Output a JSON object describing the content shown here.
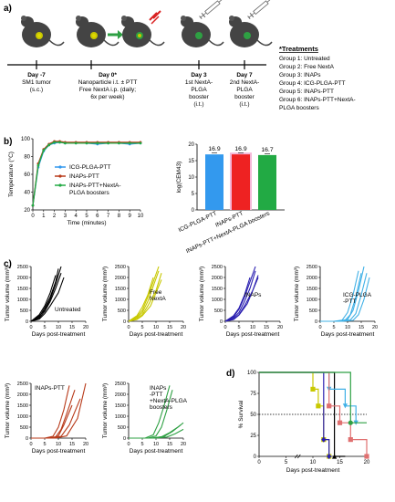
{
  "panels": {
    "a": {
      "label": "a)",
      "timeline": [
        {
          "day": "Day -7",
          "desc": [
            "SM1 tumor",
            "(s.c.)"
          ]
        },
        {
          "day": "Day 0*",
          "desc": [
            "Nanoparticle i.t. ± PTT",
            "Free NextA i.p. (daily;",
            "6x per week)"
          ]
        },
        {
          "day": "Day 3",
          "desc": [
            "1st NextA-",
            "PLGA",
            "booster",
            "(i.t.)"
          ]
        },
        {
          "day": "Day 7",
          "desc": [
            "2nd NextA-",
            "PLGA",
            "booster",
            "(i.t.)"
          ]
        }
      ],
      "treatments_title": "*Treatments",
      "treatments": [
        "Group 1: Untreated",
        "Group 2: Free NextA",
        "Group 3: INAPs",
        "Group 4: ICG-PLGA-PTT",
        "Group 5: INAPs-PTT",
        "Group 6: INAPs-PTT+NextA-",
        "PLGA boosters"
      ]
    },
    "b": {
      "label": "b)"
    },
    "c": {
      "label": "c)"
    },
    "d": {
      "label": "d)"
    }
  },
  "colors": {
    "untreated": "#000000",
    "free_nexta": "#c8c800",
    "inaps": "#2a1fb0",
    "icg": "#3fb0e6",
    "inaps_ptt": "#b83a1a",
    "combo": "#2ea043",
    "bar_blue": "#3399ee",
    "bar_red": "#ee2222",
    "bar_green": "#22aa44",
    "pink_shadow": "#f4b8d8"
  },
  "chart_data": [
    {
      "id": "b-temperature",
      "type": "line",
      "xlabel": "Time (minutes)",
      "ylabel": "Temperature (°C)",
      "xlim": [
        0,
        10
      ],
      "ylim": [
        20,
        100
      ],
      "xticks": [
        0,
        1,
        2,
        3,
        4,
        5,
        6,
        7,
        8,
        9,
        10
      ],
      "yticks": [
        20,
        40,
        60,
        80,
        100
      ],
      "series": [
        {
          "name": "ICG-PLGA-PTT",
          "color": "#3399ee",
          "x": [
            0,
            0.5,
            1,
            1.5,
            2,
            2.5,
            3,
            4,
            5,
            6,
            7,
            8,
            9,
            10
          ],
          "y": [
            25,
            68,
            86,
            93,
            95,
            96,
            95,
            95,
            95,
            94,
            95,
            95,
            94,
            95
          ]
        },
        {
          "name": "INAPs-PTT",
          "color": "#b83a1a",
          "x": [
            0,
            0.5,
            1,
            1.5,
            2,
            2.5,
            3,
            4,
            5,
            6,
            7,
            8,
            9,
            10
          ],
          "y": [
            25,
            72,
            88,
            94,
            97,
            97,
            96,
            96,
            96,
            96,
            96,
            96,
            96,
            96
          ]
        },
        {
          "name": "INAPs-PTT+NextA-PLGA boosters",
          "color": "#22aa44",
          "x": [
            0,
            0.5,
            1,
            1.5,
            2,
            2.5,
            3,
            4,
            5,
            6,
            7,
            8,
            9,
            10
          ],
          "y": [
            25,
            70,
            87,
            93,
            96,
            96,
            95,
            95,
            95,
            95,
            95,
            95,
            95,
            95
          ]
        }
      ]
    },
    {
      "id": "b-cem43",
      "type": "bar",
      "ylabel": "log(CEM43)",
      "ylim": [
        0,
        20
      ],
      "yticks": [
        0,
        5,
        10,
        15,
        20
      ],
      "categories": [
        "ICG-PLGA-PTT",
        "INAPs-PTT",
        "INAPs-PTT+NextA-PLGA boosters"
      ],
      "values": [
        16.9,
        16.9,
        16.7
      ],
      "value_labels": [
        "16.9",
        "16.9",
        "16.7"
      ]
    },
    {
      "id": "c-tumor-growth",
      "type": "line",
      "xlabel": "Days post-treatment",
      "ylabel": "Tumor volume (mm³)",
      "xlim": [
        0,
        20
      ],
      "ylim": [
        0,
        2500
      ],
      "xticks": [
        0,
        5,
        10,
        15,
        20
      ],
      "yticks": [
        0,
        500,
        1000,
        1500,
        2000,
        2500
      ],
      "groups": [
        {
          "name": "Untreated",
          "color": "#000000",
          "curves": [
            {
              "x": [
                0,
                3,
                5,
                7,
                9,
                10
              ],
              "y": [
                0,
                200,
                600,
                1100,
                1800,
                2400
              ]
            },
            {
              "x": [
                0,
                3,
                5,
                7,
                9,
                11
              ],
              "y": [
                0,
                150,
                450,
                900,
                1500,
                2200
              ]
            },
            {
              "x": [
                0,
                3,
                5,
                7,
                10,
                12
              ],
              "y": [
                0,
                100,
                350,
                700,
                1300,
                2000
              ]
            },
            {
              "x": [
                0,
                3,
                5,
                7,
                9,
                11
              ],
              "y": [
                0,
                250,
                500,
                1000,
                1700,
                2500
              ]
            },
            {
              "x": [
                0,
                3,
                5,
                7,
                9
              ],
              "y": [
                0,
                300,
                700,
                1300,
                2100
              ]
            }
          ]
        },
        {
          "name": "Free NextA",
          "color": "#c8c800",
          "curves": [
            {
              "x": [
                0,
                3,
                5,
                7,
                9,
                11
              ],
              "y": [
                0,
                150,
                400,
                900,
                1600,
                2300
              ]
            },
            {
              "x": [
                0,
                3,
                5,
                7,
                10,
                12
              ],
              "y": [
                0,
                100,
                300,
                700,
                1400,
                2200
              ]
            },
            {
              "x": [
                0,
                3,
                5,
                7,
                9,
                11
              ],
              "y": [
                0,
                200,
                500,
                1100,
                1800,
                2500
              ]
            },
            {
              "x": [
                0,
                3,
                5,
                7,
                9
              ],
              "y": [
                0,
                250,
                650,
                1200,
                2000
              ]
            },
            {
              "x": [
                0,
                3,
                5,
                8,
                10,
                12
              ],
              "y": [
                0,
                80,
                250,
                700,
                1300,
                1900
              ]
            }
          ]
        },
        {
          "name": "INAPs",
          "color": "#2a1fb0",
          "curves": [
            {
              "x": [
                0,
                3,
                5,
                7,
                9,
                11
              ],
              "y": [
                0,
                150,
                400,
                900,
                1500,
                2300
              ]
            },
            {
              "x": [
                0,
                3,
                5,
                7,
                10,
                12
              ],
              "y": [
                0,
                100,
                300,
                700,
                1400,
                2100
              ]
            },
            {
              "x": [
                0,
                3,
                5,
                7,
                9,
                11
              ],
              "y": [
                0,
                200,
                550,
                1100,
                1800,
                2500
              ]
            },
            {
              "x": [
                0,
                3,
                5,
                7,
                9
              ],
              "y": [
                0,
                250,
                600,
                1200,
                2000
              ]
            },
            {
              "x": [
                0,
                3,
                5,
                8,
                10,
                12
              ],
              "y": [
                0,
                80,
                280,
                800,
                1400,
                2000
              ]
            }
          ]
        },
        {
          "name": "ICG-PLGA-PTT",
          "color": "#3fb0e6",
          "curves": [
            {
              "x": [
                0,
                5,
                8,
                10,
                12,
                14
              ],
              "y": [
                0,
                0,
                50,
                400,
                1200,
                2300
              ]
            },
            {
              "x": [
                0,
                5,
                9,
                11,
                13,
                15
              ],
              "y": [
                0,
                0,
                30,
                300,
                1100,
                2200
              ]
            },
            {
              "x": [
                0,
                6,
                10,
                12,
                14,
                16
              ],
              "y": [
                0,
                0,
                80,
                500,
                1400,
                2500
              ]
            },
            {
              "x": [
                0,
                7,
                11,
                13,
                15,
                17
              ],
              "y": [
                0,
                0,
                60,
                350,
                1200,
                2200
              ]
            },
            {
              "x": [
                0,
                8,
                12,
                14,
                16,
                18
              ],
              "y": [
                0,
                0,
                40,
                300,
                1000,
                2000
              ]
            }
          ]
        },
        {
          "name": "INAPs-PTT",
          "color": "#b83a1a",
          "curves": [
            {
              "x": [
                0,
                5,
                8,
                10,
                12,
                14
              ],
              "y": [
                0,
                0,
                80,
                500,
                1300,
                2400
              ]
            },
            {
              "x": [
                0,
                6,
                9,
                11,
                13,
                16
              ],
              "y": [
                0,
                0,
                50,
                400,
                1100,
                2200
              ]
            },
            {
              "x": [
                0,
                7,
                10,
                12,
                15
              ],
              "y": [
                0,
                0,
                100,
                600,
                1500
              ]
            },
            {
              "x": [
                0,
                8,
                11,
                14,
                18
              ],
              "y": [
                0,
                0,
                80,
                600,
                1800
              ]
            },
            {
              "x": [
                0,
                9,
                13,
                17,
                20
              ],
              "y": [
                0,
                0,
                100,
                900,
                2500
              ]
            }
          ]
        },
        {
          "name": "INAPs-PTT+NextA-PLGA boosters",
          "color": "#2ea043",
          "curves": [
            {
              "x": [
                0,
                6,
                9,
                11,
                13,
                15
              ],
              "y": [
                0,
                0,
                150,
                700,
                1500,
                2400
              ]
            },
            {
              "x": [
                0,
                7,
                10,
                12,
                14,
                16
              ],
              "y": [
                0,
                0,
                100,
                500,
                1300,
                2200
              ]
            },
            {
              "x": [
                0,
                8,
                12,
                15,
                18,
                20
              ],
              "y": [
                0,
                0,
                60,
                250,
                500,
                700
              ]
            },
            {
              "x": [
                0,
                9,
                13,
                16,
                19
              ],
              "y": [
                0,
                0,
                80,
                300,
                600
              ]
            },
            {
              "x": [
                0,
                10,
                14,
                17,
                20
              ],
              "y": [
                0,
                0,
                50,
                200,
                400
              ]
            }
          ]
        }
      ]
    },
    {
      "id": "d-survival",
      "type": "line",
      "xlabel": "Days post-treatment",
      "ylabel": "% Survival",
      "xlim": [
        0,
        20
      ],
      "ylim": [
        0,
        100
      ],
      "xticks": [
        0,
        5,
        10,
        15,
        20
      ],
      "yticks": [
        0,
        25,
        50,
        75,
        100
      ],
      "x_axis_break": true,
      "reference_line": 50,
      "series": [
        {
          "color": "#000000",
          "marker": "triangle",
          "x": [
            0,
            14,
            14,
            16
          ],
          "y": [
            100,
            100,
            0,
            0
          ]
        },
        {
          "color": "#c8c800",
          "marker": "square",
          "x": [
            0,
            10,
            10,
            11,
            11,
            12,
            12,
            13,
            13
          ],
          "y": [
            100,
            100,
            80,
            80,
            60,
            60,
            20,
            20,
            0
          ]
        },
        {
          "color": "#2a1fb0",
          "marker": "diamond",
          "x": [
            0,
            12,
            12,
            13,
            13
          ],
          "y": [
            100,
            100,
            20,
            20,
            0
          ]
        },
        {
          "color": "#3fb0e6",
          "marker": "triangle-down",
          "x": [
            0,
            13,
            13,
            16,
            16,
            18,
            18
          ],
          "y": [
            100,
            100,
            80,
            80,
            60,
            60,
            40
          ]
        },
        {
          "color": "#e07070",
          "marker": "square",
          "x": [
            0,
            13,
            13,
            15,
            15,
            17,
            17,
            20,
            20
          ],
          "y": [
            100,
            100,
            60,
            60,
            40,
            40,
            20,
            20,
            0
          ]
        },
        {
          "color": "#2ea043",
          "marker": "circle",
          "x": [
            0,
            17,
            17,
            20
          ],
          "y": [
            100,
            100,
            40,
            40
          ]
        }
      ]
    }
  ]
}
